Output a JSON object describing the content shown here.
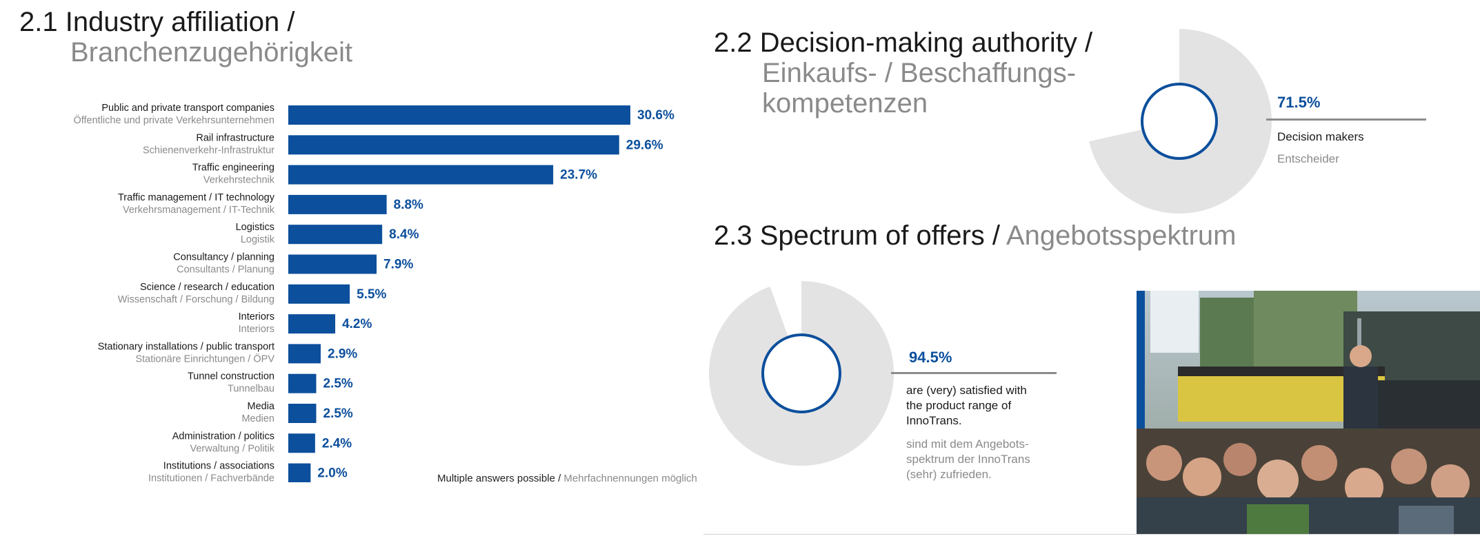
{
  "section_21": {
    "num": "2.1",
    "title_en": "Industry affiliation /",
    "title_de": "Branchenzugehörigkeit"
  },
  "section_22": {
    "num": "2.2",
    "title_en": "Decision-making authority /",
    "title_de_1": "Einkaufs- / Beschaffungs-",
    "title_de_2": "kompetenzen"
  },
  "section_23": {
    "num": "2.3",
    "title_en": "Spectrum of offers /",
    "title_de": "Angebotsspektrum"
  },
  "note": {
    "en": "Multiple answers possible /",
    "de": "Mehrfachnennungen möglich"
  },
  "chart_data": [
    {
      "type": "bar",
      "orientation": "horizontal",
      "categories": [
        "Public and private transport companies",
        "Rail infrastructure",
        "Traffic engineering",
        "Traffic management / IT technology",
        "Logistics",
        "Consultancy / planning",
        "Science / research / education",
        "Interiors",
        "Stationary installations / public transport",
        "Tunnel construction",
        "Media",
        "Administration / politics",
        "Institutions / associations"
      ],
      "categories_de": [
        "Öffentliche und private Verkehrsunternehmen",
        "Schienenverkehr-Infrastruktur",
        "Verkehrstechnik",
        "Verkehrsmanagement / IT-Technik",
        "Logistik",
        "Consultants / Planung",
        "Wissenschaft / Forschung / Bildung",
        "Interiors",
        "Stationäre Einrichtungen / ÖPV",
        "Tunnelbau",
        "Medien",
        "Verwaltung / Politik",
        "Institutionen / Fachverbände"
      ],
      "values": [
        30.6,
        29.6,
        23.7,
        8.8,
        8.4,
        7.9,
        5.5,
        4.2,
        2.9,
        2.5,
        2.5,
        2.4,
        2.0
      ],
      "value_labels": [
        "30.6%",
        "29.6%",
        "23.7%",
        "8.8%",
        "8.4%",
        "7.9%",
        "5.5%",
        "4.2%",
        "2.9%",
        "2.5%",
        "2.5%",
        "2.4%",
        "2.0%"
      ],
      "color": "#0c4f9c"
    },
    {
      "type": "pie",
      "values": [
        71.5,
        28.5
      ],
      "value_label": "71.5%",
      "label_en": "Decision makers",
      "label_de": "Entscheider",
      "colors": [
        "#e3e3e3",
        "#ffffff"
      ],
      "ring_color": "#0c4f9c"
    },
    {
      "type": "pie",
      "values": [
        94.5,
        5.5
      ],
      "value_label": "94.5%",
      "label_en_lines": [
        "are (very) satisfied with",
        "the product range of",
        "InnoTrans."
      ],
      "label_de_lines": [
        "sind mit dem Angebots-",
        "spektrum der InnoTrans",
        "(sehr) zufrieden."
      ],
      "colors": [
        "#e3e3e3",
        "#ffffff"
      ],
      "ring_color": "#0c4f9c"
    }
  ]
}
